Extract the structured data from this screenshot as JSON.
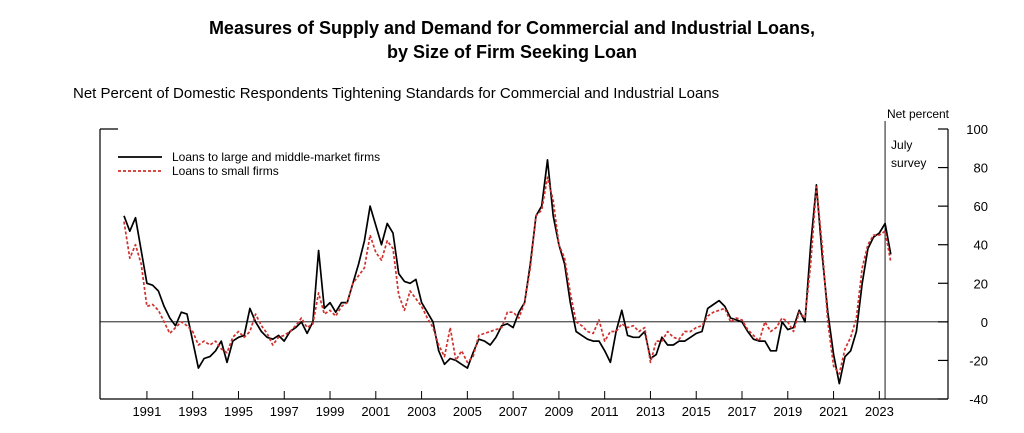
{
  "chart_data": {
    "type": "line",
    "title": [
      "Measures of Supply and Demand for Commercial and Industrial Loans,",
      "by Size of Firm Seeking Loan"
    ],
    "subtitle": "Net Percent of Domestic Respondents Tightening Standards for Commercial and Industrial Loans",
    "y_axis_label": "Net percent",
    "annotation": {
      "x": 2023.25,
      "label": [
        "July",
        "survey"
      ]
    },
    "xlim": [
      1988.95,
      2026
    ],
    "xticks": [
      1991,
      1993,
      1995,
      1997,
      1999,
      2001,
      2003,
      2005,
      2007,
      2009,
      2011,
      2013,
      2015,
      2017,
      2019,
      2021,
      2023
    ],
    "ylim": [
      -40,
      100
    ],
    "yticks": [
      -40,
      -20,
      0,
      20,
      40,
      60,
      80,
      100
    ],
    "legend": "upper-left",
    "x": [
      1990,
      1990.25,
      1990.5,
      1990.75,
      1991,
      1991.25,
      1991.5,
      1991.75,
      1992,
      1992.25,
      1992.5,
      1992.75,
      1993,
      1993.25,
      1993.5,
      1993.75,
      1994,
      1994.25,
      1994.5,
      1994.75,
      1995,
      1995.25,
      1995.5,
      1995.75,
      1996,
      1996.25,
      1996.5,
      1996.75,
      1997,
      1997.25,
      1997.5,
      1997.75,
      1998,
      1998.25,
      1998.5,
      1998.75,
      1999,
      1999.25,
      1999.5,
      1999.75,
      2000,
      2000.25,
      2000.5,
      2000.75,
      2001,
      2001.25,
      2001.5,
      2001.75,
      2002,
      2002.25,
      2002.5,
      2002.75,
      2003,
      2003.25,
      2003.5,
      2003.75,
      2004,
      2004.25,
      2004.5,
      2004.75,
      2005,
      2005.25,
      2005.5,
      2005.75,
      2006,
      2006.25,
      2006.5,
      2006.75,
      2007,
      2007.25,
      2007.5,
      2007.75,
      2008,
      2008.25,
      2008.5,
      2008.75,
      2009,
      2009.25,
      2009.5,
      2009.75,
      2010,
      2010.25,
      2010.5,
      2010.75,
      2011,
      2011.25,
      2011.5,
      2011.75,
      2012,
      2012.25,
      2012.5,
      2012.75,
      2013,
      2013.25,
      2013.5,
      2013.75,
      2014,
      2014.25,
      2014.5,
      2014.75,
      2015,
      2015.25,
      2015.5,
      2015.75,
      2016,
      2016.25,
      2016.5,
      2016.75,
      2017,
      2017.25,
      2017.5,
      2017.75,
      2018,
      2018.25,
      2018.5,
      2018.75,
      2019,
      2019.25,
      2019.5,
      2019.75,
      2020,
      2020.25,
      2020.5,
      2020.75,
      2021,
      2021.25,
      2021.5,
      2021.75,
      2022,
      2022.25,
      2022.5,
      2022.75,
      2023,
      2023.25,
      2023.5
    ],
    "series": [
      {
        "name": "Loans to large and middle-market firms",
        "color": "#000000",
        "dash": "solid",
        "values": [
          55,
          47,
          54,
          37,
          20,
          19,
          16,
          8,
          2,
          -2,
          5,
          4,
          -10,
          -24,
          -19,
          -18,
          -15,
          -10,
          -21,
          -10,
          -8,
          -7,
          7,
          0,
          -5,
          -8,
          -9,
          -7,
          -10,
          -5,
          -3,
          0,
          -6,
          0,
          37,
          7,
          10,
          5,
          10,
          10,
          20,
          30,
          42,
          60,
          50,
          40,
          51,
          46,
          25,
          21,
          20,
          22,
          10,
          5,
          0,
          -15,
          -22,
          -19,
          -20,
          -22,
          -24,
          -16,
          -9,
          -10,
          -12,
          -8,
          -2,
          -1,
          -3,
          5,
          10,
          30,
          55,
          60,
          84,
          55,
          40,
          30,
          10,
          -5,
          -7,
          -9,
          -10,
          -10,
          -15,
          -21,
          -5,
          6,
          -7,
          -8,
          -8,
          -5,
          -19,
          -17,
          -8,
          -12,
          -12,
          -10,
          -10,
          -8,
          -6,
          -5,
          7,
          9,
          11,
          8,
          2,
          1,
          0,
          -5,
          -9,
          -10,
          -10,
          -15,
          -15,
          0,
          -4,
          -3,
          6,
          0,
          40,
          71,
          35,
          5,
          -17,
          -32,
          -18,
          -15,
          -5,
          20,
          38,
          44,
          46,
          51,
          35
        ]
      },
      {
        "name": "Loans to small firms",
        "color": "#d0312d",
        "dash": "dotted",
        "values": [
          52,
          33,
          40,
          30,
          8,
          9,
          6,
          0,
          -6,
          -3,
          0,
          -2,
          -5,
          -12,
          -10,
          -12,
          -10,
          -14,
          -16,
          -8,
          -5,
          -8,
          -5,
          4,
          -2,
          -6,
          -12,
          -8,
          -7,
          -5,
          -2,
          2,
          -3,
          -1,
          15,
          4,
          6,
          3,
          8,
          10,
          20,
          24,
          28,
          45,
          36,
          32,
          42,
          38,
          14,
          6,
          16,
          12,
          8,
          2,
          -3,
          -12,
          -18,
          -3,
          -20,
          -15,
          -21,
          -18,
          -7,
          -6,
          -5,
          -4,
          -3,
          5,
          5,
          2,
          10,
          28,
          55,
          58,
          75,
          63,
          40,
          33,
          15,
          0,
          -2,
          -5,
          -6,
          1,
          -10,
          -5,
          -5,
          -1,
          -3,
          -2,
          -5,
          -3,
          -21,
          -10,
          -10,
          -5,
          -8,
          -9,
          -5,
          -5,
          -3,
          -2,
          3,
          5,
          6,
          7,
          0,
          2,
          1,
          -4,
          -7,
          -10,
          0,
          -5,
          -3,
          2,
          0,
          -5,
          5,
          2,
          30,
          70,
          40,
          0,
          -23,
          -27,
          -14,
          -8,
          2,
          28,
          40,
          45,
          45,
          47,
          31
        ]
      }
    ]
  }
}
